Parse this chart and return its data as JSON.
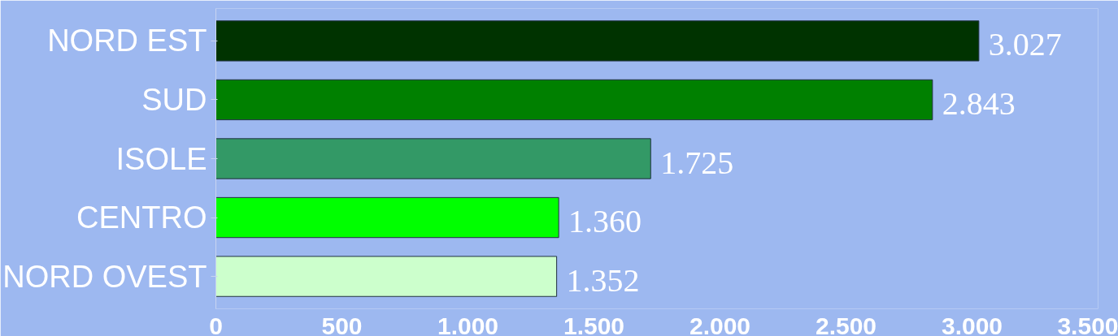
{
  "chart_data": {
    "type": "bar",
    "orientation": "horizontal",
    "categories": [
      "NORD EST",
      "SUD",
      "ISOLE",
      "CENTRO",
      "NORD OVEST"
    ],
    "values": [
      3027,
      2843,
      1725,
      1360,
      1352
    ],
    "colors": [
      "#003300",
      "#008000",
      "#339966",
      "#00ff00",
      "#ccffcc"
    ],
    "value_labels": [
      "3.027",
      "2.843",
      "1.725",
      "1.360",
      "1.352"
    ],
    "xlim": [
      0,
      3500
    ],
    "xticks": [
      0,
      500,
      {
        "value": 1000,
        "label": "1.000"
      },
      {
        "value": 1500,
        "label": "1.500"
      },
      {
        "value": 2000,
        "label": "2.000"
      },
      {
        "value": 2500,
        "label": "2.500"
      },
      {
        "value": 3000,
        "label": "3.000"
      },
      {
        "value": 3500,
        "label": "3.500"
      }
    ],
    "grid": false
  }
}
